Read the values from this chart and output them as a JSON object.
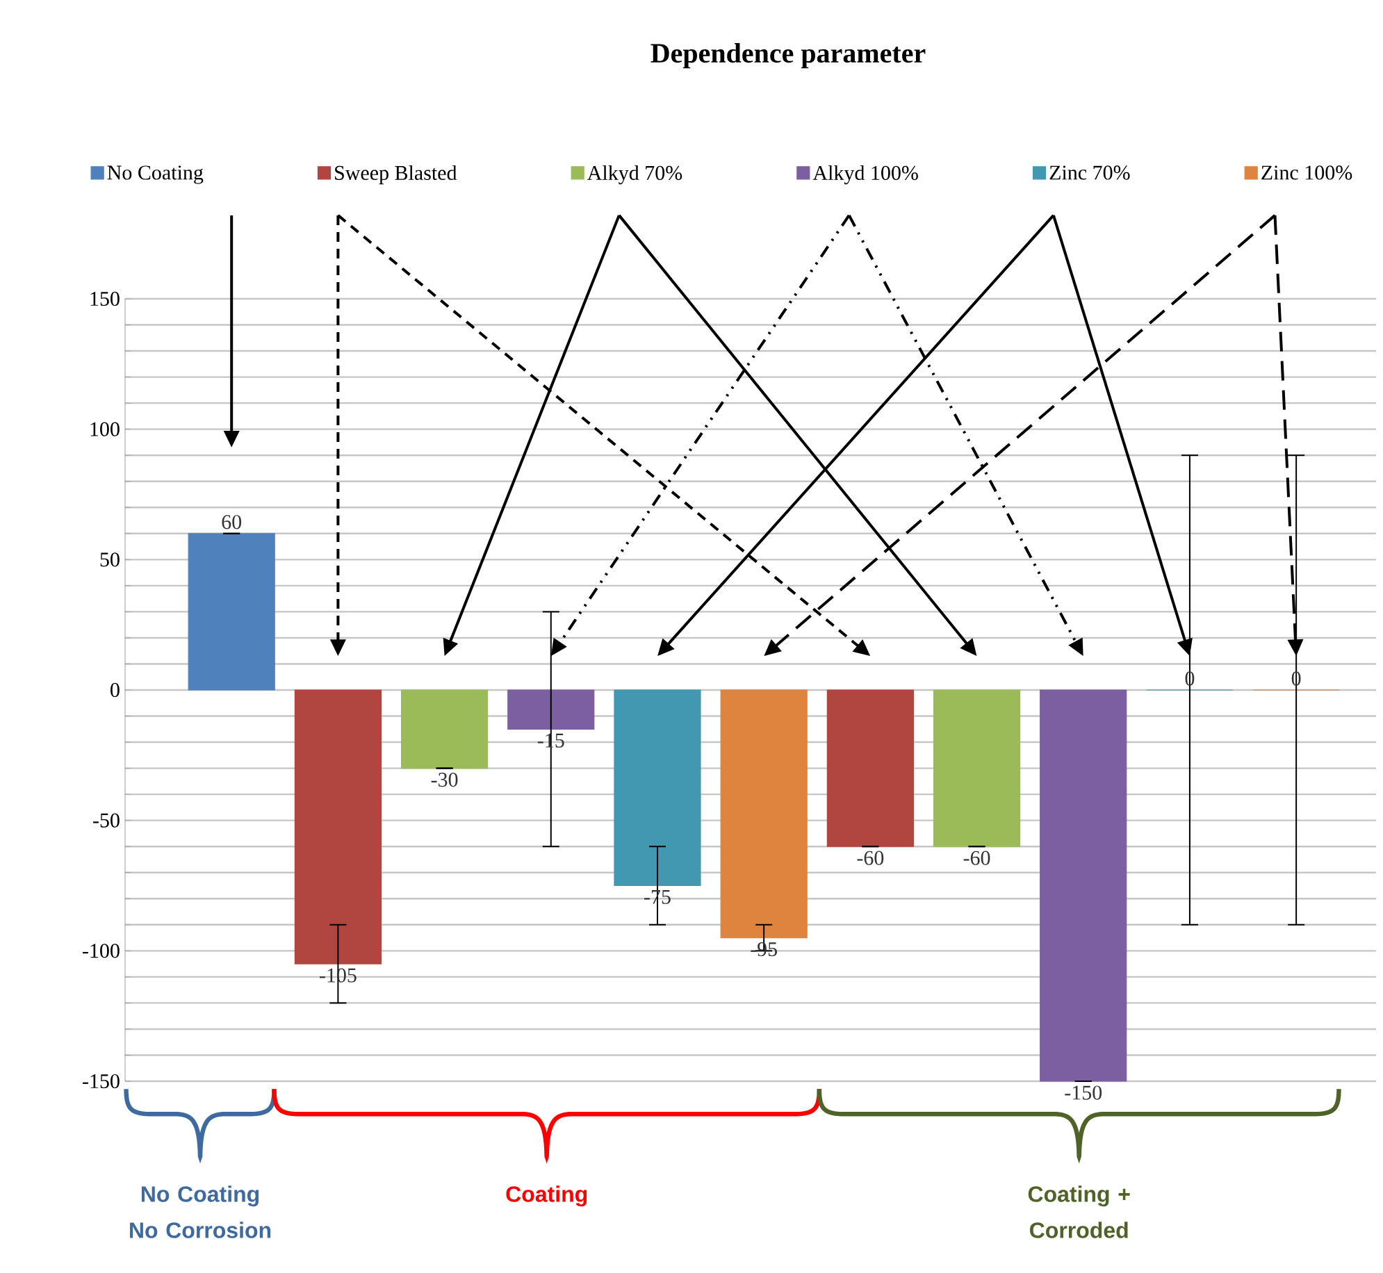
{
  "chart_data": {
    "type": "bar",
    "title": "Dependence parameter",
    "categories": [
      null,
      null,
      null,
      null,
      null,
      null,
      null,
      null,
      null,
      null,
      null
    ],
    "series": [
      {
        "name": "No Coating",
        "color": "#4f81bd",
        "values": [
          60,
          null,
          null,
          null,
          null,
          null,
          null,
          null,
          null,
          null,
          null
        ],
        "errors": [
          null,
          null,
          null,
          null,
          null,
          null,
          null,
          null,
          null,
          null,
          null
        ]
      },
      {
        "name": "Sweep Blasted",
        "color": "#b0463f",
        "values": [
          null,
          -105,
          null,
          null,
          null,
          null,
          -60,
          null,
          null,
          null,
          null
        ],
        "errors": [
          null,
          15,
          null,
          null,
          null,
          null,
          null,
          null,
          null,
          null,
          null
        ]
      },
      {
        "name": "Alkyd 70%",
        "color": "#9bbb59",
        "values": [
          null,
          null,
          -30,
          null,
          null,
          null,
          null,
          -60,
          null,
          null,
          null
        ],
        "errors": [
          null,
          null,
          null,
          null,
          null,
          null,
          null,
          null,
          null,
          null,
          null
        ]
      },
      {
        "name": "Alkyd 100%",
        "color": "#7c5fa0",
        "values": [
          null,
          null,
          null,
          -15,
          null,
          null,
          null,
          null,
          -150,
          null,
          null
        ],
        "errors": [
          null,
          null,
          null,
          45,
          null,
          null,
          null,
          null,
          null,
          null,
          null
        ]
      },
      {
        "name": "Zinc 70%",
        "color": "#4198b0",
        "values": [
          null,
          null,
          null,
          null,
          -75,
          null,
          null,
          null,
          null,
          0,
          null
        ],
        "errors": [
          null,
          null,
          null,
          null,
          15,
          null,
          null,
          null,
          null,
          90,
          null
        ]
      },
      {
        "name": "Zinc 100%",
        "color": "#de843f",
        "values": [
          null,
          null,
          null,
          null,
          null,
          -95,
          null,
          null,
          null,
          null,
          0
        ],
        "errors": [
          null,
          null,
          null,
          null,
          null,
          5,
          null,
          null,
          null,
          null,
          90
        ]
      }
    ],
    "ylim": [
      -150,
      150
    ],
    "yticks": [
      -150,
      {
        "value": -140,
        "label": null
      },
      {
        "value": -130,
        "label": null
      },
      {
        "value": -120,
        "label": null
      },
      {
        "value": -110,
        "label": null
      },
      -100,
      {
        "value": -90,
        "label": null
      },
      {
        "value": -80,
        "label": null
      },
      {
        "value": -70,
        "label": null
      },
      {
        "value": -60,
        "label": null
      },
      -50,
      {
        "value": -40,
        "label": null
      },
      {
        "value": -30,
        "label": null
      },
      {
        "value": -20,
        "label": null
      },
      {
        "value": -10,
        "label": null
      },
      0,
      {
        "value": 10,
        "label": null
      },
      {
        "value": 20,
        "label": null
      },
      {
        "value": 30,
        "label": null
      },
      {
        "value": 40,
        "label": null
      },
      50,
      {
        "value": 60,
        "label": null
      },
      {
        "value": 70,
        "label": null
      },
      {
        "value": 80,
        "label": null
      },
      {
        "value": 90,
        "label": null
      },
      100,
      {
        "value": 110,
        "label": null
      },
      {
        "value": 120,
        "label": null
      },
      {
        "value": 130,
        "label": null
      },
      {
        "value": 140,
        "label": null
      },
      150
    ],
    "grid": "y",
    "legend": "top",
    "data_labels": true,
    "annotations": [
      "No Coating No Corrosion",
      "Coating",
      "Coating + Corroded"
    ]
  }
}
